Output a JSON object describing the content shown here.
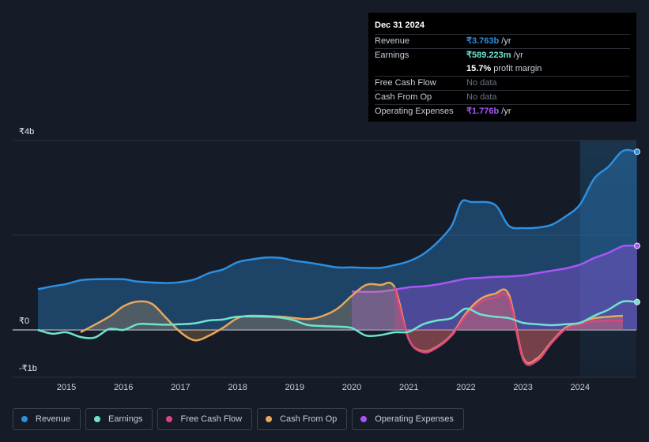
{
  "tooltip": {
    "date": "Dec 31 2024",
    "rows": [
      {
        "label": "Revenue",
        "value": "₹3.763b",
        "unit": " /yr",
        "color": "#2d8fe0"
      },
      {
        "label": "Earnings",
        "value": "₹589.223m",
        "unit": " /yr",
        "color": "#6ee3cf"
      },
      {
        "label": "",
        "value": "15.7%",
        "unit": " profit margin",
        "color": "#ffffff"
      },
      {
        "label": "Free Cash Flow",
        "value": "No data",
        "unit": "",
        "color": "#6b7280"
      },
      {
        "label": "Cash From Op",
        "value": "No data",
        "unit": "",
        "color": "#6b7280"
      },
      {
        "label": "Operating Expenses",
        "value": "₹1.776b",
        "unit": " /yr",
        "color": "#a855f7"
      }
    ]
  },
  "legend": [
    {
      "label": "Revenue",
      "color": "#2d8fe0"
    },
    {
      "label": "Earnings",
      "color": "#6ee3cf"
    },
    {
      "label": "Free Cash Flow",
      "color": "#d9467f"
    },
    {
      "label": "Cash From Op",
      "color": "#e8a65d"
    },
    {
      "label": "Operating Expenses",
      "color": "#a855f7"
    }
  ],
  "chart_data": {
    "type": "line",
    "title": "",
    "xlabel": "",
    "ylabel": "",
    "ylim": [
      -1,
      4
    ],
    "y_ticks": [
      {
        "value": 4,
        "label": "₹4b"
      },
      {
        "value": 0,
        "label": "₹0"
      },
      {
        "value": -1,
        "label": "-₹1b"
      }
    ],
    "xlim": [
      2014.5,
      2025.0
    ],
    "x_ticks": [
      {
        "value": 2015,
        "label": "2015"
      },
      {
        "value": 2016,
        "label": "2016"
      },
      {
        "value": 2017,
        "label": "2017"
      },
      {
        "value": 2018,
        "label": "2018"
      },
      {
        "value": 2019,
        "label": "2019"
      },
      {
        "value": 2020,
        "label": "2020"
      },
      {
        "value": 2021,
        "label": "2021"
      },
      {
        "value": 2022,
        "label": "2022"
      },
      {
        "value": 2023,
        "label": "2023"
      },
      {
        "value": 2024,
        "label": "2024"
      }
    ],
    "highlight_from": 2024.0,
    "series": [
      {
        "name": "Revenue",
        "color": "#2d8fe0",
        "fill": true,
        "marker": true,
        "points": [
          [
            2014.5,
            0.86
          ],
          [
            2014.75,
            0.92
          ],
          [
            2015.0,
            0.97
          ],
          [
            2015.25,
            1.05
          ],
          [
            2015.5,
            1.07
          ],
          [
            2016.0,
            1.07
          ],
          [
            2016.25,
            1.02
          ],
          [
            2016.75,
            0.99
          ],
          [
            2017.0,
            1.01
          ],
          [
            2017.25,
            1.07
          ],
          [
            2017.5,
            1.2
          ],
          [
            2017.75,
            1.28
          ],
          [
            2018.0,
            1.43
          ],
          [
            2018.25,
            1.49
          ],
          [
            2018.5,
            1.53
          ],
          [
            2018.75,
            1.52
          ],
          [
            2019.0,
            1.46
          ],
          [
            2019.25,
            1.42
          ],
          [
            2019.5,
            1.37
          ],
          [
            2019.75,
            1.32
          ],
          [
            2020.0,
            1.32
          ],
          [
            2020.25,
            1.31
          ],
          [
            2020.5,
            1.31
          ],
          [
            2020.75,
            1.37
          ],
          [
            2021.0,
            1.45
          ],
          [
            2021.25,
            1.6
          ],
          [
            2021.5,
            1.85
          ],
          [
            2021.75,
            2.2
          ],
          [
            2021.92,
            2.7
          ],
          [
            2022.1,
            2.7
          ],
          [
            2022.5,
            2.65
          ],
          [
            2022.75,
            2.2
          ],
          [
            2023.0,
            2.15
          ],
          [
            2023.25,
            2.16
          ],
          [
            2023.5,
            2.22
          ],
          [
            2023.75,
            2.4
          ],
          [
            2024.0,
            2.65
          ],
          [
            2024.25,
            3.2
          ],
          [
            2024.5,
            3.45
          ],
          [
            2024.75,
            3.78
          ],
          [
            2025.0,
            3.763
          ]
        ]
      },
      {
        "name": "Operating Expenses",
        "color": "#a855f7",
        "fill": true,
        "marker": true,
        "points": [
          [
            2020.0,
            0.81
          ],
          [
            2020.5,
            0.81
          ],
          [
            2021.0,
            0.9
          ],
          [
            2021.25,
            0.92
          ],
          [
            2021.5,
            0.96
          ],
          [
            2021.75,
            1.02
          ],
          [
            2022.0,
            1.08
          ],
          [
            2022.25,
            1.1
          ],
          [
            2022.5,
            1.12
          ],
          [
            2022.75,
            1.13
          ],
          [
            2023.0,
            1.15
          ],
          [
            2023.25,
            1.2
          ],
          [
            2023.5,
            1.25
          ],
          [
            2023.75,
            1.3
          ],
          [
            2024.0,
            1.38
          ],
          [
            2024.25,
            1.52
          ],
          [
            2024.5,
            1.63
          ],
          [
            2024.75,
            1.77
          ],
          [
            2025.0,
            1.776
          ]
        ]
      },
      {
        "name": "Cash From Op",
        "color": "#e8a65d",
        "fill": true,
        "marker": false,
        "points": [
          [
            2015.25,
            -0.05
          ],
          [
            2015.75,
            0.28
          ],
          [
            2016.0,
            0.5
          ],
          [
            2016.25,
            0.6
          ],
          [
            2016.5,
            0.55
          ],
          [
            2016.75,
            0.25
          ],
          [
            2017.0,
            -0.05
          ],
          [
            2017.25,
            -0.22
          ],
          [
            2017.5,
            -0.12
          ],
          [
            2017.75,
            0.05
          ],
          [
            2018.0,
            0.25
          ],
          [
            2018.25,
            0.3
          ],
          [
            2018.75,
            0.28
          ],
          [
            2019.0,
            0.25
          ],
          [
            2019.25,
            0.23
          ],
          [
            2019.5,
            0.3
          ],
          [
            2019.75,
            0.45
          ],
          [
            2020.0,
            0.72
          ],
          [
            2020.25,
            0.95
          ],
          [
            2020.5,
            0.95
          ],
          [
            2020.75,
            0.9
          ],
          [
            2021.0,
            -0.2
          ],
          [
            2021.25,
            -0.45
          ],
          [
            2021.5,
            -0.35
          ],
          [
            2021.75,
            -0.1
          ],
          [
            2022.0,
            0.35
          ],
          [
            2022.25,
            0.65
          ],
          [
            2022.5,
            0.76
          ],
          [
            2022.75,
            0.75
          ],
          [
            2023.0,
            -0.58
          ],
          [
            2023.25,
            -0.6
          ],
          [
            2023.5,
            -0.25
          ],
          [
            2023.75,
            0.05
          ],
          [
            2024.0,
            0.15
          ],
          [
            2024.25,
            0.25
          ],
          [
            2024.75,
            0.3
          ]
        ]
      },
      {
        "name": "Free Cash Flow",
        "color": "#d9467f",
        "fill": true,
        "marker": false,
        "points": [
          [
            2020.75,
            0.9
          ],
          [
            2021.0,
            -0.2
          ],
          [
            2021.25,
            -0.47
          ],
          [
            2021.5,
            -0.37
          ],
          [
            2021.75,
            -0.12
          ],
          [
            2022.0,
            0.3
          ],
          [
            2022.25,
            0.58
          ],
          [
            2022.5,
            0.68
          ],
          [
            2022.75,
            0.67
          ],
          [
            2023.0,
            -0.62
          ],
          [
            2023.25,
            -0.65
          ],
          [
            2023.5,
            -0.28
          ],
          [
            2023.75,
            0.02
          ],
          [
            2024.0,
            0.12
          ],
          [
            2024.25,
            0.18
          ],
          [
            2024.75,
            0.2
          ]
        ]
      },
      {
        "name": "Earnings",
        "color": "#6ee3cf",
        "fill": false,
        "marker": true,
        "points": [
          [
            2014.5,
            0.0
          ],
          [
            2014.75,
            -0.08
          ],
          [
            2015.0,
            -0.05
          ],
          [
            2015.25,
            -0.15
          ],
          [
            2015.5,
            -0.16
          ],
          [
            2015.75,
            0.02
          ],
          [
            2016.0,
            0.0
          ],
          [
            2016.25,
            0.12
          ],
          [
            2016.5,
            0.12
          ],
          [
            2016.75,
            0.11
          ],
          [
            2017.0,
            0.12
          ],
          [
            2017.25,
            0.14
          ],
          [
            2017.5,
            0.2
          ],
          [
            2017.75,
            0.22
          ],
          [
            2018.0,
            0.28
          ],
          [
            2018.5,
            0.28
          ],
          [
            2018.75,
            0.26
          ],
          [
            2019.0,
            0.2
          ],
          [
            2019.25,
            0.1
          ],
          [
            2019.75,
            0.07
          ],
          [
            2020.0,
            0.04
          ],
          [
            2020.25,
            -0.12
          ],
          [
            2020.5,
            -0.11
          ],
          [
            2020.75,
            -0.05
          ],
          [
            2021.0,
            -0.04
          ],
          [
            2021.25,
            0.12
          ],
          [
            2021.5,
            0.2
          ],
          [
            2021.75,
            0.25
          ],
          [
            2022.0,
            0.45
          ],
          [
            2022.25,
            0.33
          ],
          [
            2022.5,
            0.28
          ],
          [
            2022.75,
            0.25
          ],
          [
            2023.0,
            0.15
          ],
          [
            2023.25,
            0.12
          ],
          [
            2023.5,
            0.1
          ],
          [
            2023.75,
            0.12
          ],
          [
            2024.0,
            0.15
          ],
          [
            2024.25,
            0.3
          ],
          [
            2024.5,
            0.43
          ],
          [
            2024.75,
            0.6
          ],
          [
            2025.0,
            0.589
          ]
        ]
      }
    ]
  }
}
